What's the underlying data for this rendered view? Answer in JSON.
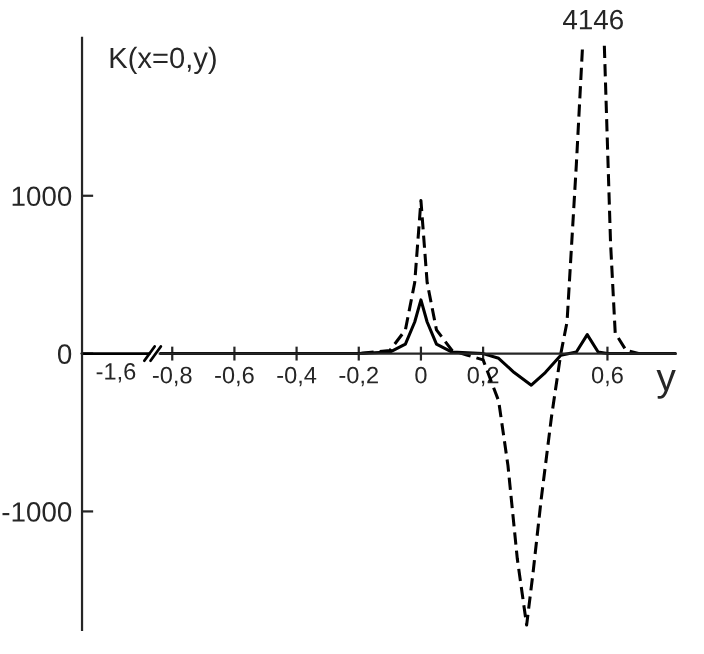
{
  "chart_data": {
    "type": "line",
    "xlim": [
      -0.84,
      0.82
    ],
    "xticks": [
      {
        "value": -0.8,
        "label": "-0,8"
      },
      {
        "value": -0.6,
        "label": "-0,6"
      },
      {
        "value": -0.4,
        "label": "-0,4"
      },
      {
        "value": -0.2,
        "label": "-0,2"
      },
      0,
      {
        "value": 0.2,
        "label": "0,2"
      },
      {
        "value": 0.6,
        "label": "0,6"
      }
    ],
    "ylim": [
      -1750,
      2000
    ],
    "yticks": [
      {
        "value": -1000,
        "label": "-1000"
      },
      0,
      1000
    ],
    "xlabel": "y",
    "annotations": [
      "K(x=0,y)",
      "4146",
      "-1,6"
    ],
    "series": [
      {
        "color": "#000000",
        "line_style": "solid",
        "x": [
          -0.84,
          -0.2,
          -0.1,
          -0.05,
          -0.02,
          0,
          0.02,
          0.05,
          0.1,
          0.2,
          0.25,
          0.3,
          0.355,
          0.4,
          0.45,
          0.5,
          0.535,
          0.57,
          0.6,
          0.82
        ],
        "values": [
          0,
          0,
          10,
          60,
          200,
          340,
          200,
          60,
          10,
          0,
          -30,
          -120,
          -200,
          -120,
          -10,
          10,
          120,
          10,
          0,
          0
        ]
      },
      {
        "color": "#000000",
        "line_style": "dashed",
        "x": [
          -0.84,
          -0.2,
          -0.1,
          -0.05,
          -0.02,
          0,
          0.02,
          0.05,
          0.1,
          0.15,
          0.2,
          0.25,
          0.28,
          0.31,
          0.34,
          0.36,
          0.387,
          0.42,
          0.45,
          0.47,
          0.5,
          0.52,
          0.555,
          0.59,
          0.61,
          0.625,
          0.66,
          0.7,
          0.82
        ],
        "values": [
          0,
          0,
          20,
          150,
          450,
          970,
          450,
          150,
          20,
          -10,
          -40,
          -300,
          -710,
          -1300,
          -1720,
          -1400,
          -920,
          -400,
          0,
          200,
          1200,
          1950,
          null,
          1950,
          700,
          130,
          20,
          0,
          0
        ]
      }
    ]
  }
}
